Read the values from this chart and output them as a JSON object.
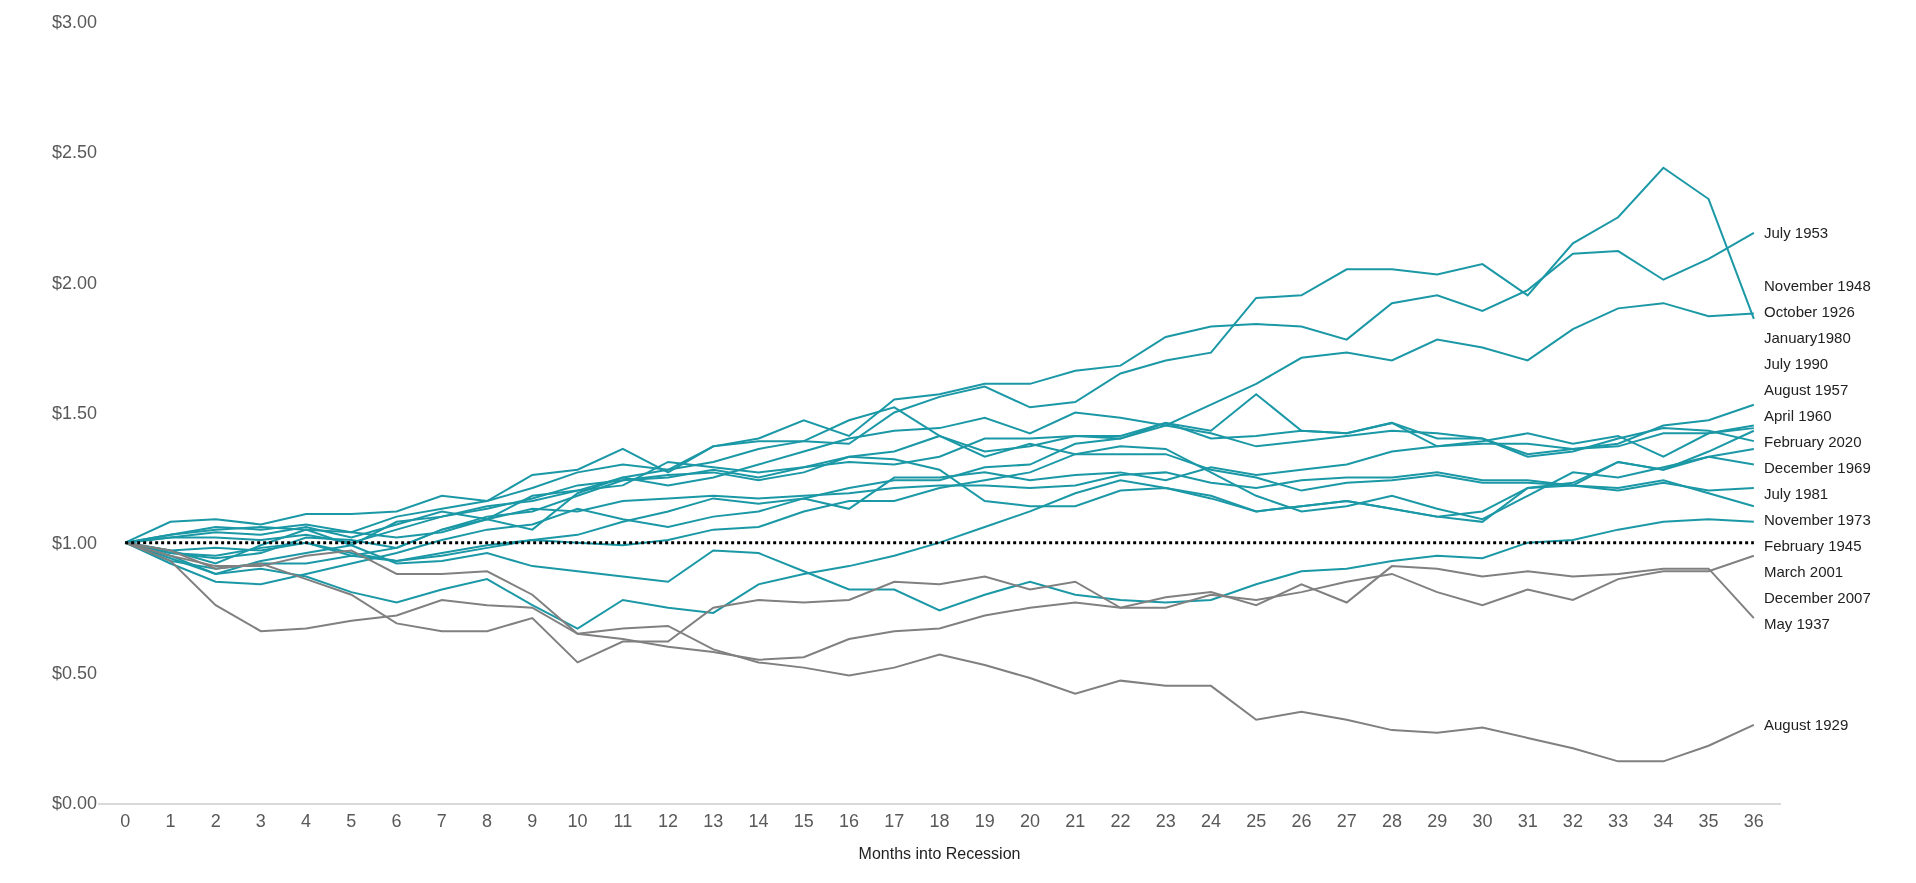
{
  "chart_data": {
    "type": "line",
    "xlabel": "Months into Recession",
    "x": [
      0,
      1,
      2,
      3,
      4,
      5,
      6,
      7,
      8,
      9,
      10,
      11,
      12,
      13,
      14,
      15,
      16,
      17,
      18,
      19,
      20,
      21,
      22,
      23,
      24,
      25,
      26,
      27,
      28,
      29,
      30,
      31,
      32,
      33,
      34,
      35,
      36
    ],
    "xlim": [
      -0.6,
      36.6
    ],
    "xticks": [
      0,
      1,
      2,
      3,
      4,
      5,
      6,
      7,
      8,
      9,
      10,
      11,
      12,
      13,
      14,
      15,
      16,
      17,
      18,
      19,
      20,
      21,
      22,
      23,
      24,
      25,
      26,
      27,
      28,
      29,
      30,
      31,
      32,
      33,
      34,
      35,
      36
    ],
    "ylim": [
      0,
      3
    ],
    "yticks": [
      {
        "value": 0,
        "label": "$0.00"
      },
      {
        "value": 0.5,
        "label": "$0.50"
      },
      {
        "value": 1,
        "label": "$1.00"
      },
      {
        "value": 1.5,
        "label": "$1.50"
      },
      {
        "value": 2,
        "label": "$2.00"
      },
      {
        "value": 2.5,
        "label": "$2.50"
      },
      {
        "value": 3,
        "label": "$3.00"
      }
    ],
    "legend": false,
    "marker": "none",
    "line_style": "solid",
    "ref_lines": [
      {
        "axis": "y",
        "value": 1,
        "color": "#000000",
        "line_style": "dotted"
      }
    ],
    "series": [
      {
        "name": "July 1953",
        "color": "#1b98a6",
        "values": [
          1,
          1.03,
          1.06,
          1.05,
          1.07,
          1.04,
          1.1,
          1.13,
          1.16,
          1.21,
          1.27,
          1.3,
          1.28,
          1.37,
          1.4,
          1.47,
          1.41,
          1.55,
          1.57,
          1.61,
          1.61,
          1.66,
          1.68,
          1.79,
          1.83,
          1.84,
          1.83,
          1.78,
          1.92,
          1.95,
          1.89,
          1.97,
          2.11,
          2.12,
          2.01,
          2.09,
          2.19
        ]
      },
      {
        "name": "November 1948",
        "color": "#1b98a6",
        "values": [
          1,
          0.97,
          0.98,
          0.97,
          1.0,
          0.95,
          0.98,
          1.05,
          1.09,
          1.05,
          1.19,
          1.25,
          1.22,
          1.25,
          1.3,
          1.35,
          1.4,
          1.43,
          1.44,
          1.48,
          1.42,
          1.5,
          1.48,
          1.45,
          1.53,
          1.61,
          1.71,
          1.73,
          1.7,
          1.78,
          1.75,
          1.7,
          1.82,
          1.9,
          1.92,
          1.87,
          1.88
        ]
      },
      {
        "name": "October 1926",
        "color": "#1b98a6",
        "values": [
          1,
          1.08,
          1.09,
          1.07,
          1.11,
          1.11,
          1.12,
          1.18,
          1.16,
          1.26,
          1.28,
          1.36,
          1.27,
          1.37,
          1.39,
          1.39,
          1.38,
          1.5,
          1.56,
          1.6,
          1.52,
          1.54,
          1.65,
          1.7,
          1.73,
          1.94,
          1.95,
          2.05,
          2.05,
          2.03,
          2.07,
          1.95,
          2.15,
          2.25,
          2.44,
          2.32,
          1.86
        ]
      },
      {
        "name": "January1980",
        "color": "#1b98a6",
        "values": [
          1,
          1.02,
          1.02,
          1.01,
          1.03,
          1.0,
          1.05,
          1.1,
          1.14,
          1.16,
          1.2,
          1.25,
          1.28,
          1.31,
          1.36,
          1.39,
          1.47,
          1.52,
          1.41,
          1.35,
          1.37,
          1.41,
          1.4,
          1.46,
          1.43,
          1.57,
          1.43,
          1.42,
          1.46,
          1.4,
          1.4,
          1.34,
          1.36,
          1.38,
          1.45,
          1.47,
          1.53
        ]
      },
      {
        "name": "July 1990",
        "color": "#1b98a6",
        "values": [
          1,
          0.94,
          0.88,
          0.93,
          0.96,
          0.99,
          1.08,
          1.1,
          1.13,
          1.17,
          1.22,
          1.24,
          1.25,
          1.28,
          1.25,
          1.29,
          1.31,
          1.3,
          1.33,
          1.4,
          1.4,
          1.41,
          1.41,
          1.46,
          1.4,
          1.41,
          1.43,
          1.42,
          1.46,
          1.37,
          1.39,
          1.42,
          1.38,
          1.41,
          1.33,
          1.42,
          1.45
        ]
      },
      {
        "name": "August 1957",
        "color": "#1b98a6",
        "values": [
          1,
          0.96,
          0.95,
          0.98,
          1.0,
          0.96,
          0.93,
          0.96,
          0.99,
          1.01,
          1.03,
          1.08,
          1.12,
          1.17,
          1.15,
          1.17,
          1.13,
          1.25,
          1.25,
          1.27,
          1.24,
          1.26,
          1.27,
          1.24,
          1.29,
          1.26,
          1.28,
          1.3,
          1.35,
          1.37,
          1.38,
          1.38,
          1.36,
          1.37,
          1.42,
          1.42,
          1.44
        ]
      },
      {
        "name": "April 1960",
        "color": "#1b98a6",
        "values": [
          1,
          1.02,
          1.04,
          1.03,
          1.06,
          1.02,
          1.07,
          1.12,
          1.09,
          1.18,
          1.2,
          1.22,
          1.31,
          1.29,
          1.27,
          1.29,
          1.33,
          1.32,
          1.28,
          1.16,
          1.14,
          1.14,
          1.2,
          1.21,
          1.17,
          1.12,
          1.14,
          1.16,
          1.13,
          1.1,
          1.12,
          1.21,
          1.22,
          1.31,
          1.28,
          1.35,
          1.43
        ]
      },
      {
        "name": "February 2020",
        "color": "#1b98a6",
        "values": [
          1,
          0.92,
          0.85,
          0.84,
          0.88,
          0.92,
          0.96,
          1.01,
          1.05,
          1.07,
          1.13,
          1.09,
          1.06,
          1.1,
          1.12,
          1.17,
          1.21,
          1.24,
          1.24,
          1.29,
          1.3,
          1.38,
          1.4,
          1.45,
          1.42,
          1.37,
          1.39,
          1.41,
          1.43,
          1.42,
          1.4,
          1.33,
          1.35,
          1.4,
          1.44,
          1.43,
          1.39
        ]
      },
      {
        "name": "December 1969",
        "color": "#1b98a6",
        "values": [
          1,
          0.96,
          0.94,
          0.96,
          1.02,
          1.01,
          0.98,
          1.05,
          1.1,
          1.12,
          1.18,
          1.24,
          1.26,
          1.27,
          1.24,
          1.27,
          1.33,
          1.35,
          1.41,
          1.33,
          1.38,
          1.34,
          1.37,
          1.36,
          1.27,
          1.18,
          1.12,
          1.14,
          1.18,
          1.13,
          1.09,
          1.18,
          1.27,
          1.25,
          1.29,
          1.33,
          1.36
        ]
      },
      {
        "name": "July 1981",
        "color": "#1b98a6",
        "values": [
          1,
          0.95,
          0.88,
          0.9,
          0.87,
          0.81,
          0.77,
          0.82,
          0.86,
          0.76,
          0.67,
          0.78,
          0.75,
          0.73,
          0.84,
          0.88,
          0.91,
          0.95,
          1.0,
          1.06,
          1.12,
          1.19,
          1.24,
          1.21,
          1.18,
          1.12,
          1.14,
          1.16,
          1.13,
          1.1,
          1.08,
          1.21,
          1.23,
          1.31,
          1.28,
          1.33,
          1.3
        ]
      },
      {
        "name": "November 1973",
        "color": "#1b98a6",
        "values": [
          1,
          0.93,
          0.9,
          0.92,
          0.92,
          0.95,
          0.93,
          0.95,
          0.98,
          1.01,
          1.0,
          0.99,
          1.01,
          1.05,
          1.06,
          1.12,
          1.16,
          1.16,
          1.21,
          1.24,
          1.27,
          1.34,
          1.34,
          1.34,
          1.28,
          1.25,
          1.2,
          1.23,
          1.24,
          1.26,
          1.23,
          1.23,
          1.22,
          1.2,
          1.23,
          1.2,
          1.21
        ]
      },
      {
        "name": "February 1945",
        "color": "#1b98a6",
        "values": [
          1,
          1.03,
          1.05,
          1.06,
          1.05,
          1.04,
          1.02,
          1.04,
          1.09,
          1.13,
          1.12,
          1.16,
          1.17,
          1.18,
          1.17,
          1.18,
          1.19,
          1.21,
          1.22,
          1.22,
          1.21,
          1.22,
          1.26,
          1.27,
          1.23,
          1.21,
          1.24,
          1.25,
          1.25,
          1.27,
          1.24,
          1.24,
          1.22,
          1.21,
          1.24,
          1.19,
          1.14
        ]
      },
      {
        "name": "March 2001",
        "color": "#1b98a6",
        "values": [
          1,
          0.97,
          0.92,
          0.99,
          1.05,
          0.99,
          0.92,
          0.93,
          0.96,
          0.91,
          0.89,
          0.87,
          0.85,
          0.97,
          0.96,
          0.89,
          0.82,
          0.82,
          0.74,
          0.8,
          0.85,
          0.8,
          0.78,
          0.77,
          0.78,
          0.84,
          0.89,
          0.9,
          0.93,
          0.95,
          0.94,
          1.0,
          1.01,
          1.05,
          1.08,
          1.09,
          1.08
        ]
      },
      {
        "name": "December 2007",
        "color": "#808080",
        "values": [
          1,
          0.95,
          0.91,
          0.91,
          0.95,
          0.97,
          0.88,
          0.88,
          0.89,
          0.8,
          0.65,
          0.63,
          0.6,
          0.58,
          0.55,
          0.56,
          0.63,
          0.66,
          0.67,
          0.72,
          0.75,
          0.77,
          0.75,
          0.75,
          0.8,
          0.78,
          0.81,
          0.85,
          0.88,
          0.81,
          0.76,
          0.82,
          0.78,
          0.86,
          0.89,
          0.89,
          0.95
        ]
      },
      {
        "name": "May 1937",
        "color": "#808080",
        "values": [
          1,
          0.97,
          0.9,
          0.92,
          0.86,
          0.8,
          0.69,
          0.66,
          0.66,
          0.71,
          0.54,
          0.62,
          0.62,
          0.75,
          0.78,
          0.77,
          0.78,
          0.85,
          0.84,
          0.87,
          0.82,
          0.85,
          0.75,
          0.79,
          0.81,
          0.76,
          0.84,
          0.77,
          0.91,
          0.9,
          0.87,
          0.89,
          0.87,
          0.88,
          0.9,
          0.9,
          0.71
        ]
      },
      {
        "name": "August 1929",
        "color": "#808080",
        "values": [
          1,
          0.93,
          0.76,
          0.66,
          0.67,
          0.7,
          0.72,
          0.78,
          0.76,
          0.75,
          0.65,
          0.67,
          0.68,
          0.59,
          0.54,
          0.52,
          0.49,
          0.52,
          0.57,
          0.53,
          0.48,
          0.42,
          0.47,
          0.45,
          0.45,
          0.32,
          0.35,
          0.32,
          0.28,
          0.27,
          0.29,
          0.25,
          0.21,
          0.16,
          0.16,
          0.22,
          0.3
        ]
      }
    ]
  }
}
